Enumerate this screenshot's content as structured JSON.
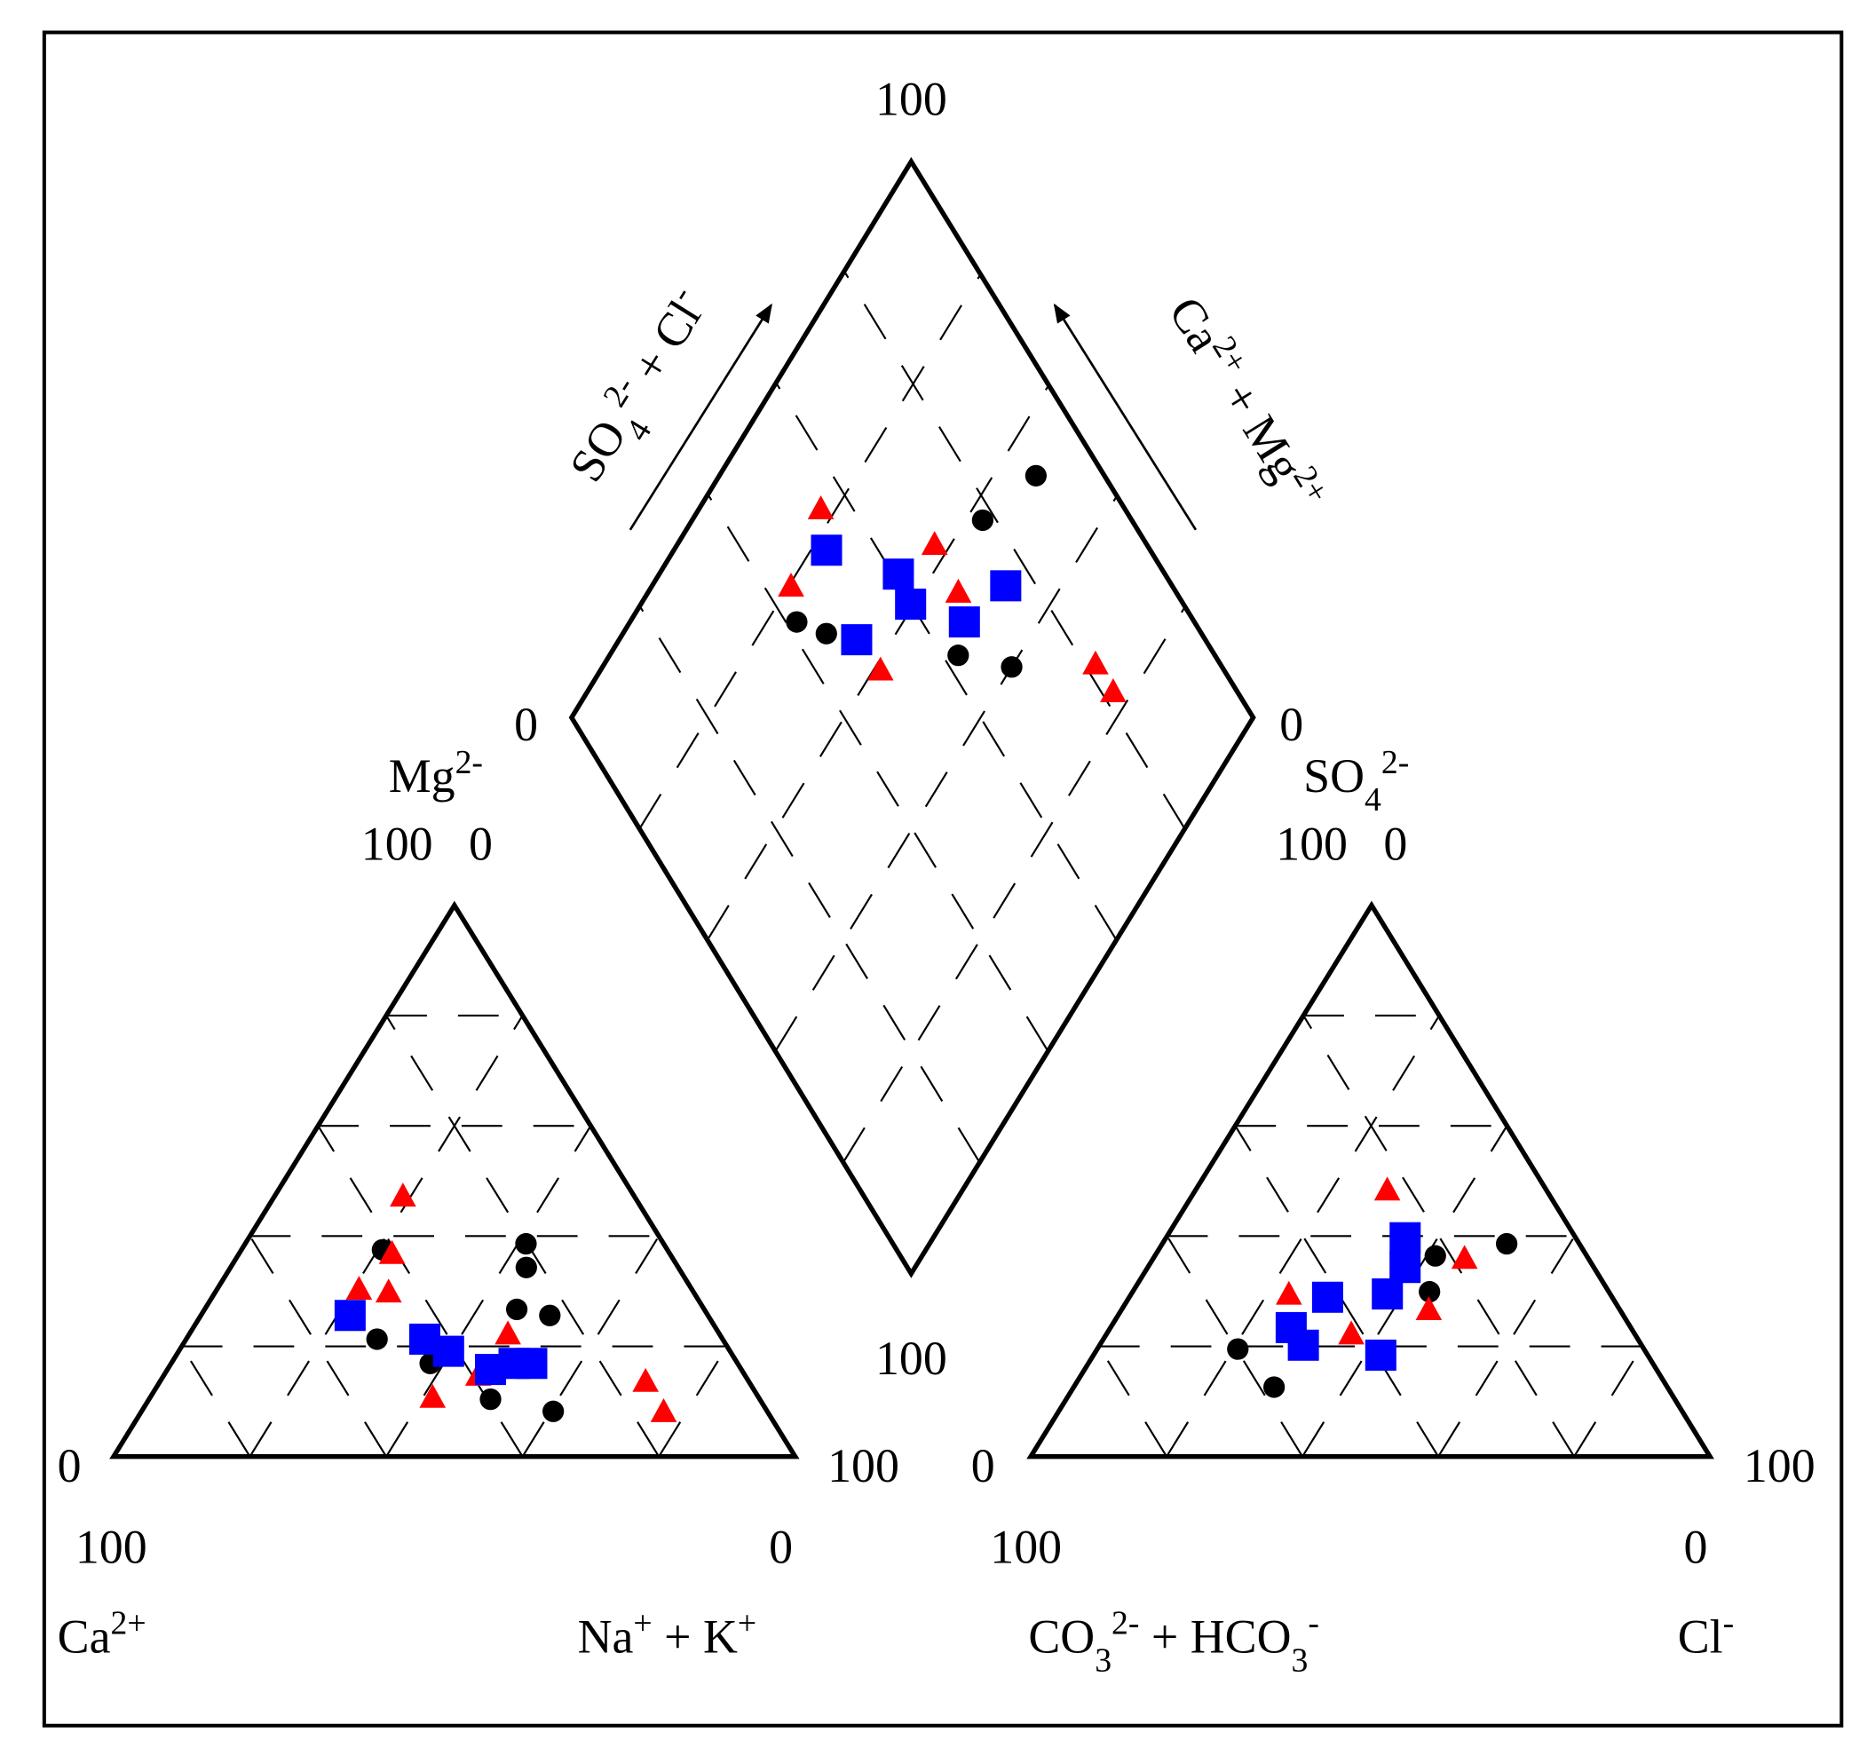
{
  "chart_data": {
    "type": "piper",
    "grid_ticks": [
      20,
      40,
      60,
      80
    ],
    "numbers": [
      100,
      0,
      0,
      100,
      100,
      0,
      0,
      100,
      100,
      0,
      100,
      0,
      0,
      100,
      100,
      0
    ],
    "labels": {
      "so4_cl": [
        {
          "text": "SO"
        },
        {
          "text": "4",
          "shift": "sub"
        },
        {
          "text": "2-",
          "shift": "super"
        },
        {
          "text": " + Cl"
        },
        {
          "text": "-",
          "shift": "super"
        }
      ],
      "ca_mg": [
        {
          "text": "Ca"
        },
        {
          "text": "2+",
          "shift": "super"
        },
        {
          "text": " + Mg"
        },
        {
          "text": "2+",
          "shift": "super"
        }
      ],
      "mg": [
        {
          "text": "Mg"
        },
        {
          "text": "2-",
          "shift": "super"
        }
      ],
      "so4": [
        {
          "text": "SO"
        },
        {
          "text": "4",
          "shift": "sub"
        },
        {
          "text": "2-",
          "shift": "super"
        }
      ],
      "ca": [
        {
          "text": "Ca"
        },
        {
          "text": "2+",
          "shift": "super"
        }
      ],
      "na_k": [
        {
          "text": "Na"
        },
        {
          "text": "+",
          "shift": "super"
        },
        {
          "text": " + K"
        },
        {
          "text": "+",
          "shift": "super"
        }
      ],
      "co3_hco3": [
        {
          "text": "CO"
        },
        {
          "text": "3",
          "shift": "sub"
        },
        {
          "text": "2-",
          "shift": "super"
        },
        {
          "text": " + HCO"
        },
        {
          "text": "3",
          "shift": "sub"
        },
        {
          "text": "-",
          "shift": "super"
        }
      ],
      "cl": [
        {
          "text": "Cl"
        },
        {
          "text": "-",
          "shift": "super"
        }
      ]
    },
    "series": [
      {
        "color": "#000000",
        "marker": "circle",
        "cation": {
          "mg": [
            38.6,
            34.3,
            26.7,
            25.6,
            8.2,
            37.5,
            21.3,
            10.4,
            16.9
          ],
          "na_k": [
            41.2,
            43.4,
            45.8,
            51.2,
            60.4,
            20.7,
            28.0,
            50.1,
            38.0
          ]
        },
        "anion": {
          "so4": [
            38.6,
            36.4,
            19.5,
            12.6,
            29.9
          ],
          "cl": [
            50.7,
            41.3,
            20.7,
            29.5,
            43.7
          ]
        },
        "diamond": {
          "so4_cl": [
            89.8,
            78.0,
            41.6,
            69.1,
            62.3,
            44.9
          ],
          "ca_mg": [
            53.7,
            57.5,
            75.6,
            40.0,
            48.9,
            70.2
          ]
        }
      },
      {
        "color": "#ff0000",
        "marker": "triangle",
        "cation": {
          "mg": [
            47.3,
            36.9,
            30.4,
            29.9,
            10.8,
            13.7,
            8.2,
            22.3,
            14.8
          ],
          "na_k": [
            18.8,
            22.4,
            20.8,
            25.4,
            41.4,
            71.2,
            76.6,
            46.7,
            46.1
          ]
        },
        "anion": {
          "so4": [
            48.4,
            36.0,
            29.5,
            26.7,
            22.3
          ],
          "cl": [
            28.2,
            45.8,
            23.2,
            45.2,
            36.0
          ]
        },
        "diamond": {
          "so4_cl": [
            55.3,
            44.0,
            49.6,
            68.8,
            68.0,
            81.7,
            81.8
          ],
          "ca_mg": [
            82.3,
            79.7,
            59.0,
            62.4,
            54.6,
            28.0,
            22.9
          ]
        }
      },
      {
        "color": "#0000ff",
        "marker": "square",
        "cation": {
          "mg": [
            25.6,
            21.3,
            19.1,
            16.9,
            16.9,
            15.8
          ],
          "na_k": [
            21.9,
            35.0,
            39.6,
            50.3,
            52.9,
            47.4
          ]
        },
        "anion": {
          "so4": [
            39.7,
            34.3,
            28.9,
            29.5,
            23.4,
            20.2,
            18.4
          ],
          "cl": [
            35.2,
            37.9,
            29.2,
            37.7,
            26.6,
            30.0,
            42.3
          ]
        },
        "diamond": {
          "so4_cl": [
            52.4,
            60.8,
            59.9,
            48.8,
            66.2,
            75.5
          ],
          "ca_mg": [
            77.7,
            65.0,
            60.5,
            65.2,
            51.0,
            48.2
          ]
        }
      }
    ]
  }
}
